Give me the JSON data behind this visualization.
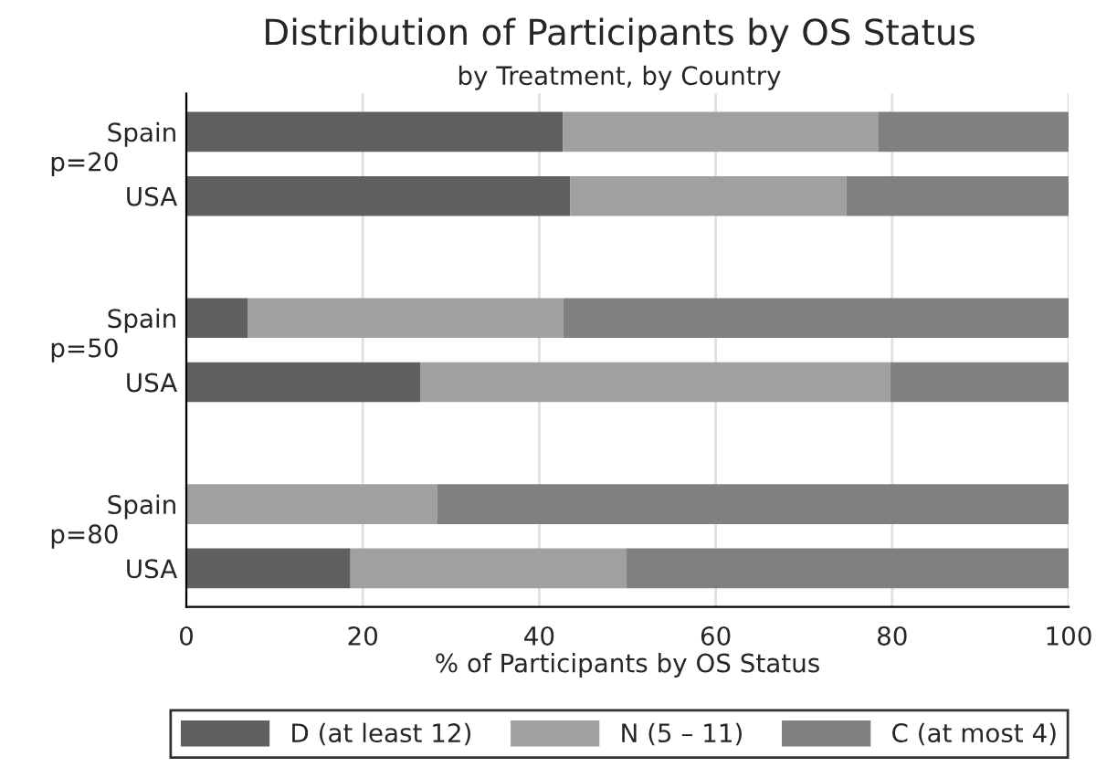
{
  "chart_data": {
    "type": "bar",
    "orientation": "horizontal",
    "stacked": true,
    "title": "Distribution of Participants by OS Status",
    "subtitle": "by Treatment, by Country",
    "xlabel": "% of Participants by OS Status",
    "categories": [
      "Spain",
      "USA",
      "Spain",
      "USA",
      "Spain",
      "USA"
    ],
    "annotations": [
      "p=20",
      "p=50",
      "p=80"
    ],
    "series": [
      {
        "name": "D (at least 12)",
        "color": "#606060",
        "values": [
          42.7,
          43.5,
          7.0,
          26.5,
          0,
          18.6
        ]
      },
      {
        "name": "N (5 – 11)",
        "color": "#a0a0a0",
        "values": [
          35.7,
          31.3,
          35.7,
          53.3,
          28.4,
          31.3
        ]
      },
      {
        "name": "C (at most 4)",
        "color": "#808080",
        "values": [
          21.6,
          25.2,
          57.3,
          20.2,
          71.6,
          50.1
        ]
      }
    ],
    "xlim": [
      0,
      100
    ],
    "xticks": [
      0,
      20,
      40,
      60,
      80,
      100
    ],
    "grid": "x",
    "legend": "bottom"
  }
}
